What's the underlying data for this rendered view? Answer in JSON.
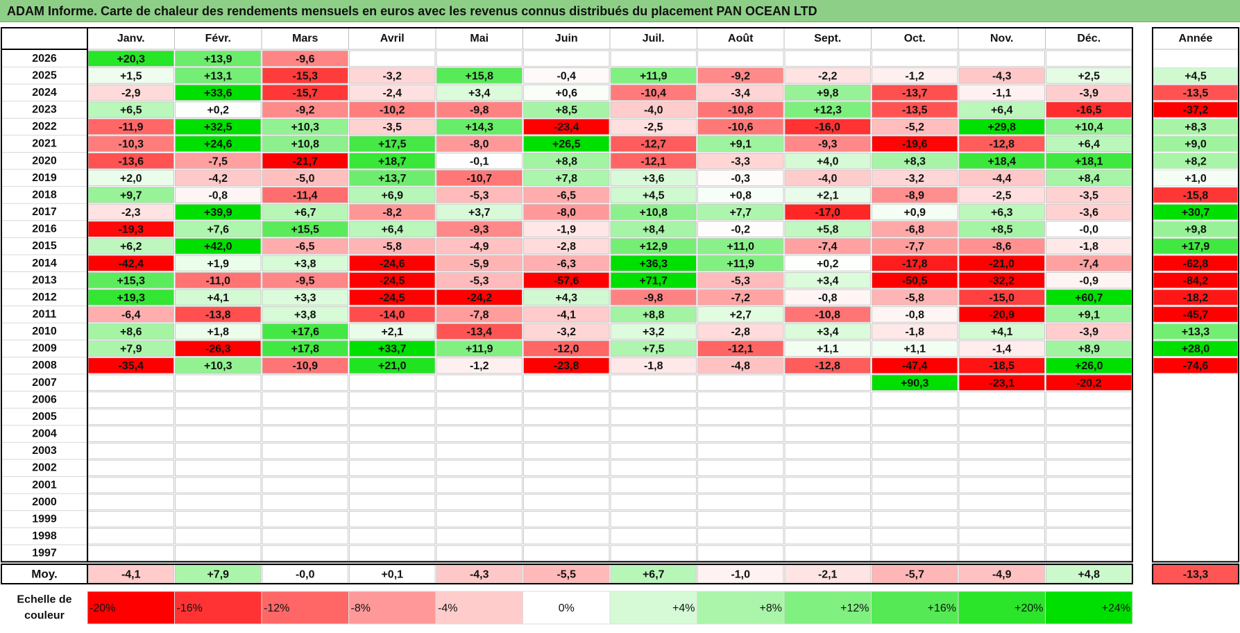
{
  "title": "ADAM Informe. Carte de chaleur des rendements mensuels en euros avec les revenus connus distribués du placement PAN OCEAN LTD",
  "chart_data": {
    "type": "heatmap",
    "months": [
      "Janv.",
      "Févr.",
      "Mars",
      "Avril",
      "Mai",
      "Juin",
      "Juil.",
      "Août",
      "Sept.",
      "Oct.",
      "Nov.",
      "Déc."
    ],
    "annual_header": "Année",
    "years": [
      "2026",
      "2025",
      "2024",
      "2023",
      "2022",
      "2021",
      "2020",
      "2019",
      "2018",
      "2017",
      "2016",
      "2015",
      "2014",
      "2013",
      "2012",
      "2011",
      "2010",
      "2009",
      "2008",
      "2007",
      "2006",
      "2005",
      "2004",
      "2003",
      "2002",
      "2001",
      "2000",
      "1999",
      "1998",
      "1997"
    ],
    "values": [
      [
        "+20,3",
        "+13,9",
        "-9,6",
        "",
        "",
        "",
        "",
        "",
        "",
        "",
        "",
        ""
      ],
      [
        "+1,5",
        "+13,1",
        "-15,3",
        "-3,2",
        "+15,8",
        "-0,4",
        "+11,9",
        "-9,2",
        "-2,2",
        "-1,2",
        "-4,3",
        "+2,5"
      ],
      [
        "-2,9",
        "+33,6",
        "-15,7",
        "-2,4",
        "+3,4",
        "+0,6",
        "-10,4",
        "-3,4",
        "+9,8",
        "-13,7",
        "-1,1",
        "-3,9"
      ],
      [
        "+6,5",
        "+0,2",
        "-9,2",
        "-10,2",
        "-9,8",
        "+8,5",
        "-4,0",
        "-10,8",
        "+12,3",
        "-13,5",
        "+6,4",
        "-16,5"
      ],
      [
        "-11,9",
        "+32,5",
        "+10,3",
        "-3,5",
        "+14,3",
        "-23,4",
        "-2,5",
        "-10,6",
        "-16,0",
        "-5,2",
        "+29,8",
        "+10,4"
      ],
      [
        "-10,3",
        "+24,6",
        "+10,8",
        "+17,5",
        "-8,0",
        "+26,5",
        "-12,7",
        "+9,1",
        "-9,3",
        "-19,6",
        "-12,8",
        "+6,4"
      ],
      [
        "-13,6",
        "-7,5",
        "-21,7",
        "+18,7",
        "-0,1",
        "+8,8",
        "-12,1",
        "-3,3",
        "+4,0",
        "+8,3",
        "+18,4",
        "+18,1"
      ],
      [
        "+2,0",
        "-4,2",
        "-5,0",
        "+13,7",
        "-10,7",
        "+7,8",
        "+3,6",
        "-0,3",
        "-4,0",
        "-3,2",
        "-4,4",
        "+8,4"
      ],
      [
        "+9,7",
        "-0,8",
        "-11,4",
        "+6,9",
        "-5,3",
        "-6,5",
        "+4,5",
        "+0,8",
        "+2,1",
        "-8,9",
        "-2,5",
        "-3,5"
      ],
      [
        "-2,3",
        "+39,9",
        "+6,7",
        "-8,2",
        "+3,7",
        "-8,0",
        "+10,8",
        "+7,7",
        "-17,0",
        "+0,9",
        "+6,3",
        "-3,6"
      ],
      [
        "-19,3",
        "+7,6",
        "+15,5",
        "+6,4",
        "-9,3",
        "-1,9",
        "+8,4",
        "-0,2",
        "+5,8",
        "-6,8",
        "+8,5",
        "-0,0"
      ],
      [
        "+6,2",
        "+42,0",
        "-6,5",
        "-5,8",
        "-4,9",
        "-2,8",
        "+12,9",
        "+11,0",
        "-7,4",
        "-7,7",
        "-8,6",
        "-1,8"
      ],
      [
        "-42,4",
        "+1,9",
        "+3,8",
        "-24,6",
        "-5,9",
        "-6,3",
        "+36,3",
        "+11,9",
        "+0,2",
        "-17,8",
        "-21,0",
        "-7,4"
      ],
      [
        "+15,3",
        "-11,0",
        "-9,5",
        "-24,5",
        "-5,3",
        "-57,6",
        "+71,7",
        "-5,3",
        "+3,4",
        "-50,5",
        "-32,2",
        "-0,9"
      ],
      [
        "+19,3",
        "+4,1",
        "+3,3",
        "-24,5",
        "-24,2",
        "+4,3",
        "-9,8",
        "-7,2",
        "-0,8",
        "-5,8",
        "-15,0",
        "+60,7"
      ],
      [
        "-6,4",
        "-13,8",
        "+3,8",
        "-14,0",
        "-7,8",
        "-4,1",
        "+8,8",
        "+2,7",
        "-10,8",
        "-0,8",
        "-20,9",
        "+9,1"
      ],
      [
        "+8,6",
        "+1,8",
        "+17,6",
        "+2,1",
        "-13,4",
        "-3,2",
        "+3,2",
        "-2,8",
        "+3,4",
        "-1,8",
        "+4,1",
        "-3,9"
      ],
      [
        "+7,9",
        "-26,3",
        "+17,8",
        "+33,7",
        "+11,9",
        "-12,0",
        "+7,5",
        "-12,1",
        "+1,1",
        "+1,1",
        "-1,4",
        "+8,9"
      ],
      [
        "-35,4",
        "+10,3",
        "-10,9",
        "+21,0",
        "-1,2",
        "-23,8",
        "-1,8",
        "-4,8",
        "-12,8",
        "-47,4",
        "-18,5",
        "+26,0"
      ],
      [
        "",
        "",
        "",
        "",
        "",
        "",
        "",
        "",
        "",
        "+90,3",
        "-23,1",
        "-20,2"
      ],
      [
        "",
        "",
        "",
        "",
        "",
        "",
        "",
        "",
        "",
        "",
        "",
        ""
      ],
      [
        "",
        "",
        "",
        "",
        "",
        "",
        "",
        "",
        "",
        "",
        "",
        ""
      ],
      [
        "",
        "",
        "",
        "",
        "",
        "",
        "",
        "",
        "",
        "",
        "",
        ""
      ],
      [
        "",
        "",
        "",
        "",
        "",
        "",
        "",
        "",
        "",
        "",
        "",
        ""
      ],
      [
        "",
        "",
        "",
        "",
        "",
        "",
        "",
        "",
        "",
        "",
        "",
        ""
      ],
      [
        "",
        "",
        "",
        "",
        "",
        "",
        "",
        "",
        "",
        "",
        "",
        ""
      ],
      [
        "",
        "",
        "",
        "",
        "",
        "",
        "",
        "",
        "",
        "",
        "",
        ""
      ],
      [
        "",
        "",
        "",
        "",
        "",
        "",
        "",
        "",
        "",
        "",
        "",
        ""
      ],
      [
        "",
        "",
        "",
        "",
        "",
        "",
        "",
        "",
        "",
        "",
        "",
        ""
      ],
      [
        "",
        "",
        "",
        "",
        "",
        "",
        "",
        "",
        "",
        "",
        "",
        ""
      ]
    ],
    "annual": [
      "",
      "+4,5",
      "-13,5",
      "-37,2",
      "+8,3",
      "+9,0",
      "+8,2",
      "+1,0",
      "-15,8",
      "+30,7",
      "+9,8",
      "+17,9",
      "-62,8",
      "-84,2",
      "-18,2",
      "-45,7",
      "+13,3",
      "+28,0",
      "-74,6",
      "",
      "",
      "",
      "",
      "",
      "",
      "",
      "",
      "",
      "",
      ""
    ],
    "average_label": "Moy.",
    "averages": [
      "-4,1",
      "+7,9",
      "-0,0",
      "+0,1",
      "-4,3",
      "-5,5",
      "+6,7",
      "-1,0",
      "-2,1",
      "-5,7",
      "-4,9",
      "+4,8"
    ],
    "average_annual": "-13,3",
    "scale_label": [
      "Echelle de",
      "couleur"
    ],
    "scale": [
      "-20%",
      "-16%",
      "-12%",
      "-8%",
      "-4%",
      "0%",
      "+4%",
      "+8%",
      "+12%",
      "+16%",
      "+20%",
      "+24%"
    ],
    "scale_values": [
      -20,
      -16,
      -12,
      -8,
      -4,
      0,
      4,
      8,
      12,
      16,
      20,
      24
    ],
    "colors": {
      "negative_strong": "#ff0000",
      "neutral": "#ffffff",
      "positive_strong": "#00e000",
      "title_bar": "#8dcf86"
    }
  }
}
